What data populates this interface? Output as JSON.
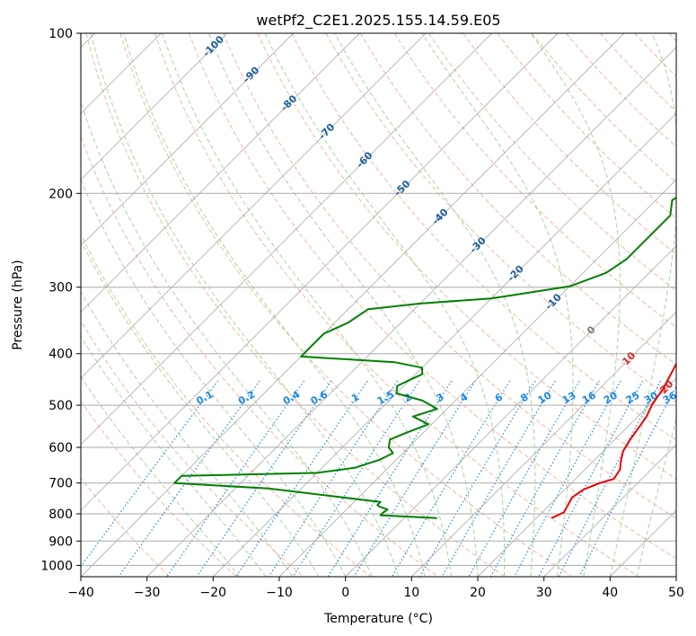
{
  "chart_data": {
    "type": "line",
    "title": "wetPf2_C2E1.2025.155.14.59.E05",
    "xlabel": "Temperature (°C)",
    "ylabel": "Pressure (hPa)",
    "xlim": [
      -40,
      50
    ],
    "ylim": [
      1050,
      100
    ],
    "y_scale": "log",
    "x_ticks": [
      -40,
      -30,
      -20,
      -10,
      0,
      10,
      20,
      30,
      40,
      50
    ],
    "y_ticks": [
      100,
      200,
      300,
      400,
      500,
      600,
      700,
      800,
      900,
      1000
    ],
    "grid": true,
    "isotherm_labels": [
      "-100",
      "-90",
      "-80",
      "-70",
      "-60",
      "-50",
      "-40",
      "-30",
      "-20",
      "-10",
      "0",
      "10",
      "20",
      "30",
      "40"
    ],
    "mixing_ratio_labels": [
      "0.1",
      "0.2",
      "0.4",
      "0.6",
      "1",
      "1.5",
      "2",
      "3",
      "4",
      "6",
      "8",
      "10",
      "13",
      "16",
      "20",
      "25",
      "30",
      "36"
    ],
    "colors": {
      "temperature": "#ee0000",
      "dewpoint": "#008000",
      "isotherm_cold": "#1f5f99",
      "isotherm_zero": "#7a7a7a",
      "isotherm_warm": "#d62728",
      "mixing_ratio": "#1e88e5",
      "dry_adiabat": "#f4a582",
      "moist_adiabat": "#9acd90",
      "skew_grid": "#9e9e9e"
    },
    "series": [
      {
        "key": "temperature",
        "points": [
          [
            22.3,
            815
          ],
          [
            23.3,
            795
          ],
          [
            22.8,
            770
          ],
          [
            22.3,
            745
          ],
          [
            22.8,
            720
          ],
          [
            24.3,
            700
          ],
          [
            25.8,
            688
          ],
          [
            25.3,
            660
          ],
          [
            24.3,
            640
          ],
          [
            23.0,
            610
          ],
          [
            22.3,
            580
          ],
          [
            21.8,
            550
          ],
          [
            21.3,
            525
          ],
          [
            20.4,
            500
          ],
          [
            19.6,
            465
          ],
          [
            18.3,
            430
          ],
          [
            16.8,
            393
          ],
          [
            15.6,
            375
          ],
          [
            12.8,
            340
          ],
          [
            10.9,
            311
          ],
          [
            9.5,
            286
          ],
          [
            8.1,
            263
          ],
          [
            6.1,
            236
          ],
          [
            4.3,
            214
          ],
          [
            3.0,
            197
          ],
          [
            3.1,
            187
          ],
          [
            2.6,
            177
          ],
          [
            1.6,
            166
          ],
          [
            0.8,
            154
          ],
          [
            0.5,
            145
          ],
          [
            0.5,
            135
          ],
          [
            1.0,
            124
          ],
          [
            2.3,
            116
          ],
          [
            3.6,
            110
          ],
          [
            4.1,
            103
          ],
          [
            4.8,
            100
          ]
        ]
      },
      {
        "key": "dewpoint",
        "points": [
          [
            5.0,
            815
          ],
          [
            -4.0,
            805
          ],
          [
            -4.0,
            795
          ],
          [
            -3.8,
            785
          ],
          [
            -5.5,
            775
          ],
          [
            -6.0,
            770
          ],
          [
            -6.0,
            760
          ],
          [
            -25.0,
            717
          ],
          [
            -40.0,
            700
          ],
          [
            -40.0,
            679
          ],
          [
            -20.0,
            670
          ],
          [
            -15.0,
            655
          ],
          [
            -12.5,
            633
          ],
          [
            -11.5,
            615
          ],
          [
            -13.0,
            600
          ],
          [
            -14.0,
            580
          ],
          [
            -12.5,
            563
          ],
          [
            -10.5,
            543
          ],
          [
            -14.0,
            525
          ],
          [
            -11.5,
            508
          ],
          [
            -15.0,
            490
          ],
          [
            -20.0,
            475
          ],
          [
            -21.0,
            460
          ],
          [
            -20.0,
            448
          ],
          [
            -19.0,
            437
          ],
          [
            -20.0,
            425
          ],
          [
            -25.0,
            415
          ],
          [
            -40.0,
            405
          ],
          [
            -40.0,
            367
          ],
          [
            -38.0,
            350
          ],
          [
            -37.0,
            330
          ],
          [
            -30.0,
            322
          ],
          [
            -20.0,
            315
          ],
          [
            -10.0,
            299
          ],
          [
            -6.5,
            282
          ],
          [
            -5.5,
            266
          ],
          [
            -5.5,
            240
          ],
          [
            -5.5,
            220
          ],
          [
            -7.5,
            206
          ],
          [
            -6.5,
            196
          ],
          [
            -3.5,
            178
          ],
          [
            -4.5,
            168
          ],
          [
            -3.8,
            156
          ],
          [
            -2.8,
            146
          ],
          [
            -1.8,
            133
          ],
          [
            -2.3,
            120
          ],
          [
            -1.5,
            108
          ],
          [
            -0.8,
            100
          ]
        ]
      }
    ]
  }
}
